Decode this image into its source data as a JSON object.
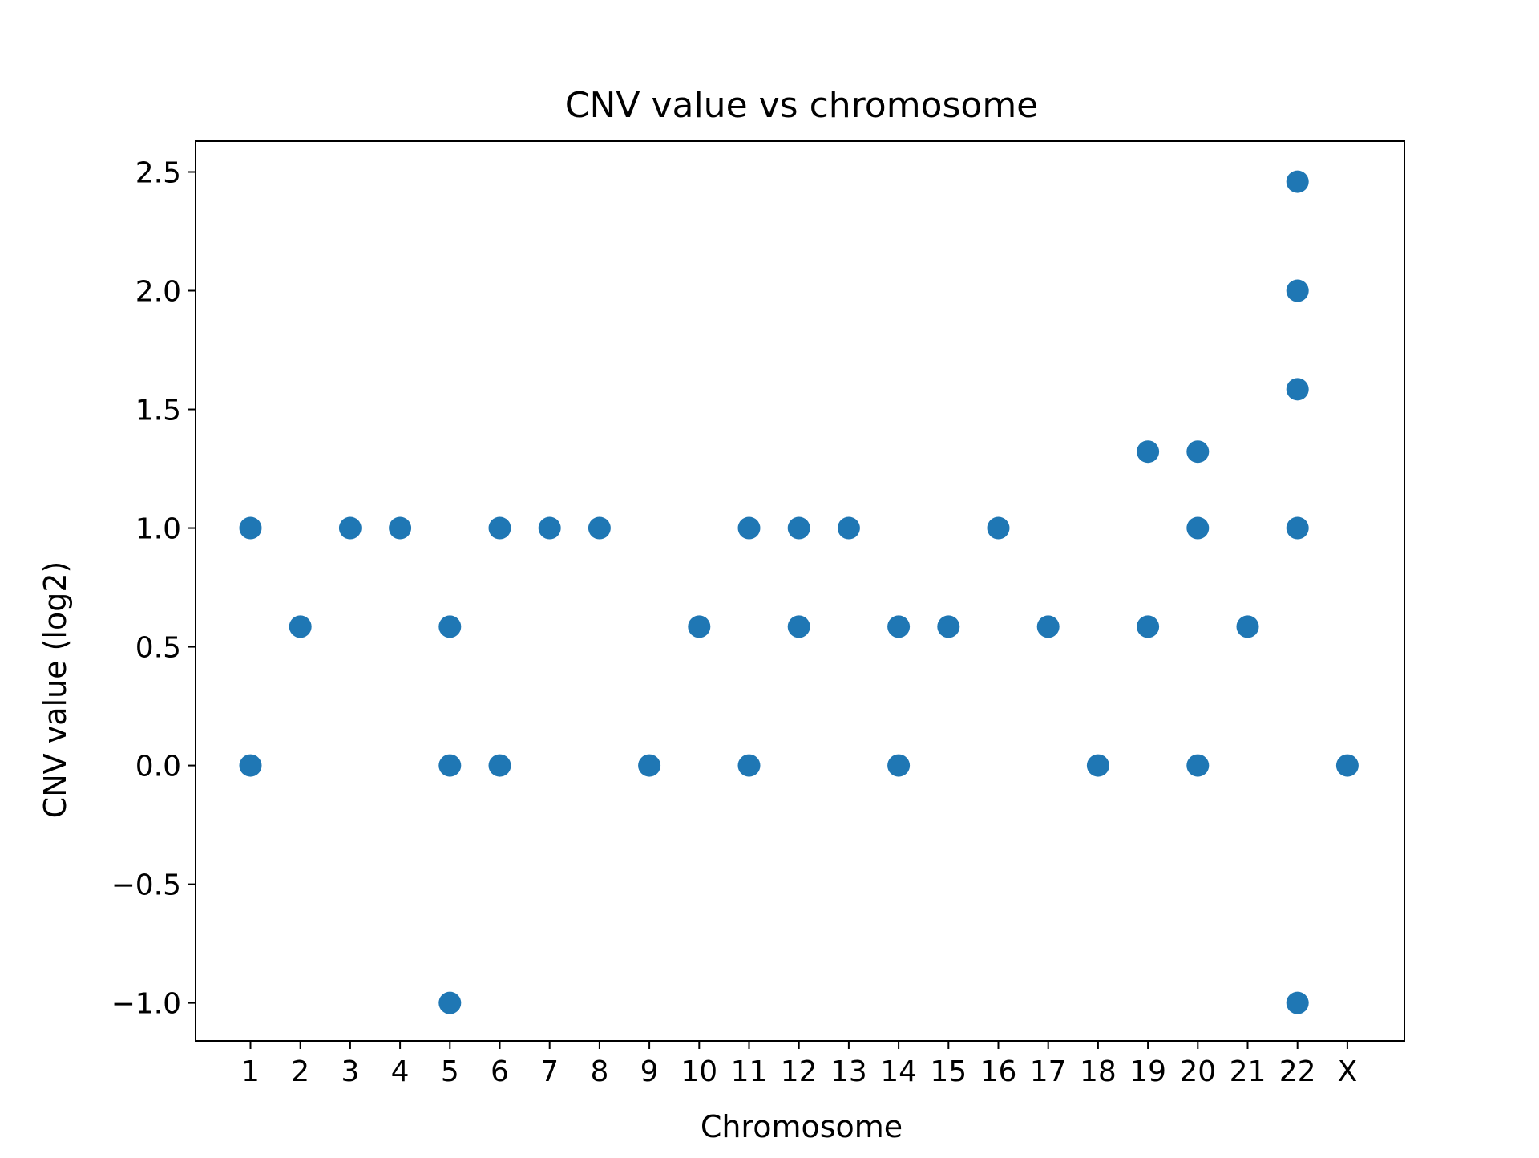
{
  "chart_data": {
    "type": "scatter",
    "title": "CNV value vs chromosome",
    "xlabel": "Chromosome",
    "ylabel": "CNV value (log2)",
    "categories": [
      "1",
      "2",
      "3",
      "4",
      "5",
      "6",
      "7",
      "8",
      "9",
      "10",
      "11",
      "12",
      "13",
      "14",
      "15",
      "16",
      "17",
      "18",
      "19",
      "20",
      "21",
      "22",
      "X"
    ],
    "ylim": [
      -1.16,
      2.63
    ],
    "yticks": [
      -1.0,
      -0.5,
      0.0,
      0.5,
      1.0,
      1.5,
      2.0,
      2.5
    ],
    "ytick_labels": [
      "−1.0",
      "−0.5",
      "0.0",
      "0.5",
      "1.0",
      "1.5",
      "2.0",
      "2.5"
    ],
    "grid": false,
    "color": "#1f77b4",
    "series": [
      {
        "points": [
          {
            "x": "1",
            "y": 1.0
          },
          {
            "x": "1",
            "y": 0.0
          },
          {
            "x": "2",
            "y": 0.585
          },
          {
            "x": "3",
            "y": 1.0
          },
          {
            "x": "4",
            "y": 1.0
          },
          {
            "x": "5",
            "y": 0.585
          },
          {
            "x": "5",
            "y": 0.0
          },
          {
            "x": "5",
            "y": -1.0
          },
          {
            "x": "6",
            "y": 1.0
          },
          {
            "x": "6",
            "y": 0.0
          },
          {
            "x": "7",
            "y": 1.0
          },
          {
            "x": "8",
            "y": 1.0
          },
          {
            "x": "9",
            "y": 0.0
          },
          {
            "x": "10",
            "y": 0.585
          },
          {
            "x": "11",
            "y": 1.0
          },
          {
            "x": "11",
            "y": 0.0
          },
          {
            "x": "12",
            "y": 1.0
          },
          {
            "x": "12",
            "y": 0.585
          },
          {
            "x": "13",
            "y": 1.0
          },
          {
            "x": "14",
            "y": 0.585
          },
          {
            "x": "14",
            "y": 0.0
          },
          {
            "x": "15",
            "y": 0.585
          },
          {
            "x": "16",
            "y": 1.0
          },
          {
            "x": "17",
            "y": 0.585
          },
          {
            "x": "18",
            "y": 0.0
          },
          {
            "x": "19",
            "y": 1.322
          },
          {
            "x": "19",
            "y": 0.585
          },
          {
            "x": "20",
            "y": 1.322
          },
          {
            "x": "20",
            "y": 1.0
          },
          {
            "x": "20",
            "y": 0.0
          },
          {
            "x": "21",
            "y": 0.585
          },
          {
            "x": "22",
            "y": 2.459
          },
          {
            "x": "22",
            "y": 2.0
          },
          {
            "x": "22",
            "y": 1.585
          },
          {
            "x": "22",
            "y": 1.0
          },
          {
            "x": "22",
            "y": -1.0
          },
          {
            "x": "X",
            "y": 0.0
          }
        ]
      }
    ]
  }
}
